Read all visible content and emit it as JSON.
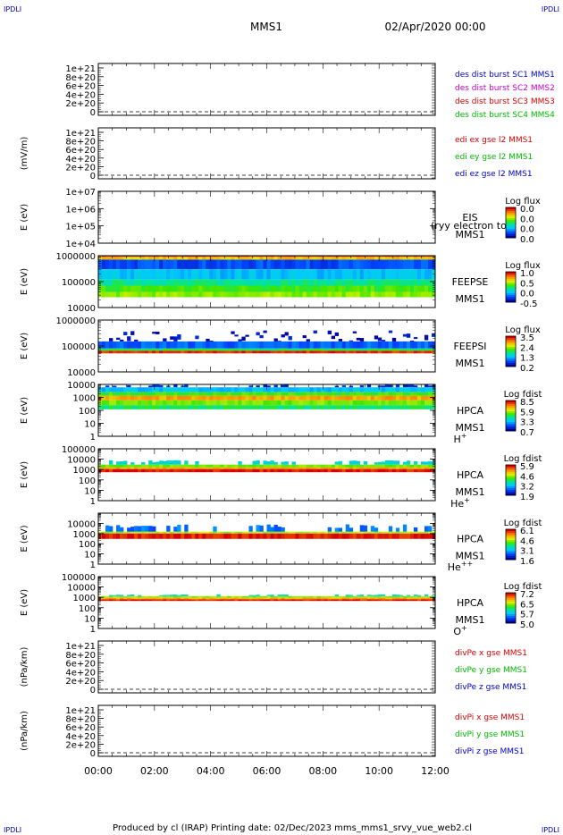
{
  "header": {
    "logo_left_top": "IPDLI",
    "logo_right_top": "IPDLI",
    "logo_left_bottom": "IPDLI",
    "logo_right_bottom": "IPDLI",
    "spacecraft": "MMS1",
    "datetime": "02/Apr/2020 00:00"
  },
  "footer": {
    "text": "Produced by cl (IRAP)   Printing date: 02/Dec/2023   mms_mms1_srvy_vue_web2.cl"
  },
  "time_axis": {
    "ticks": [
      "00:00",
      "02:00",
      "04:00",
      "06:00",
      "08:00",
      "10:00",
      "12:00"
    ]
  },
  "colors": {
    "blue": "#0000cc",
    "magenta": "#cc00cc",
    "red": "#dd0000",
    "green": "#00bb00"
  },
  "chart_data": [
    {
      "type": "line",
      "id": "des-dist",
      "ylabel": "",
      "ylim": [
        0,
        1e+21
      ],
      "yticks": [
        "1e+21",
        "8e+20",
        "6e+20",
        "4e+20",
        "2e+20",
        "0"
      ],
      "legend": [
        {
          "name": "des dist burst SC1 MMS1",
          "color": "#0000cc"
        },
        {
          "name": "des dist burst SC2 MMS2",
          "color": "#cc00cc"
        },
        {
          "name": "des dist burst SC3 MMS3",
          "color": "#dd0000"
        },
        {
          "name": "des dist burst SC4 MMS4",
          "color": "#00bb00"
        }
      ],
      "series": []
    },
    {
      "type": "line",
      "id": "edi-e",
      "ylabel": "(mV/m)",
      "ylim": [
        0,
        1e+21
      ],
      "yticks": [
        "1e+21",
        "8e+20",
        "6e+20",
        "4e+20",
        "2e+20",
        "0"
      ],
      "legend": [
        {
          "name": "edi ex gse l2 MMS1",
          "color": "#dd0000"
        },
        {
          "name": "edi ey gse l2 MMS1",
          "color": "#00bb00"
        },
        {
          "name": "edi ez gse l2 MMS1",
          "color": "#0000cc"
        }
      ],
      "series": []
    },
    {
      "type": "heatmap",
      "id": "eis",
      "ylabel": "E (eV)",
      "yscale": "log",
      "ylim": [
        10000.0,
        10000000.0
      ],
      "yticks": [
        "1e+07",
        "1e+06",
        "1e+05",
        "1e+04"
      ],
      "labels": [
        "EIS",
        "MMS1"
      ],
      "overlay": "(ryy electron to",
      "colorbar": {
        "title": "Log flux",
        "ticks": [
          "0.0",
          "0.0",
          "0.0",
          "0.0"
        ]
      },
      "bands": []
    },
    {
      "type": "heatmap",
      "id": "feepse",
      "ylabel": "E (eV)",
      "yscale": "log",
      "ylim": [
        10000,
        1000000
      ],
      "yticks": [
        "1000000",
        "100000",
        "10000"
      ],
      "labels": [
        "FEEPSE",
        "MMS1"
      ],
      "colorbar": {
        "title": "Log flux",
        "ticks": [
          "1.0",
          "0.5",
          "0.0",
          "-0.5"
        ]
      },
      "bands": [
        {
          "from": 900000.0,
          "to": 1000000.0,
          "level": 0.95
        },
        {
          "from": 700000.0,
          "to": 900000.0,
          "level": 0.75
        },
        {
          "from": 300000.0,
          "to": 700000.0,
          "level": 0.15
        },
        {
          "from": 120000.0,
          "to": 300000.0,
          "level": 0.3
        },
        {
          "from": 70000.0,
          "to": 120000.0,
          "level": 0.45
        },
        {
          "from": 40000.0,
          "to": 70000.0,
          "level": 0.55
        },
        {
          "from": 25000.0,
          "to": 40000.0,
          "level": 0.62
        }
      ]
    },
    {
      "type": "heatmap",
      "id": "feepsi",
      "ylabel": "E (eV)",
      "yscale": "log",
      "ylim": [
        10000,
        1000000
      ],
      "yticks": [
        "1000000",
        "100000",
        "10000"
      ],
      "labels": [
        "FEEPSI",
        "MMS1"
      ],
      "colorbar": {
        "title": "Log flux",
        "ticks": [
          "3.5",
          "2.4",
          "1.3",
          "0.2"
        ]
      },
      "bands": [
        {
          "from": 150000.0,
          "to": 400000.0,
          "level": 0.05,
          "sparse": true
        },
        {
          "from": 80000.0,
          "to": 150000.0,
          "level": 0.18
        },
        {
          "from": 65000.0,
          "to": 80000.0,
          "level": 0.5
        },
        {
          "from": 52000.0,
          "to": 65000.0,
          "level": 0.95
        }
      ]
    },
    {
      "type": "heatmap",
      "id": "hpca-h",
      "ylabel": "E (eV)",
      "yscale": "log",
      "ylim": [
        1,
        10000
      ],
      "yticks": [
        "10000",
        "1000",
        "100",
        "10",
        "1"
      ],
      "labels": [
        "HPCA",
        "MMS1",
        "H+"
      ],
      "colorbar": {
        "title": "Log fdist",
        "ticks": [
          "8.5",
          "5.9",
          "3.3",
          "0.7"
        ]
      },
      "bands": [
        {
          "from": 6000,
          "to": 15000,
          "level": 0.1,
          "patchy": true
        },
        {
          "from": 2500,
          "to": 6000,
          "level": 0.3
        },
        {
          "from": 1300,
          "to": 2500,
          "level": 0.55
        },
        {
          "from": 600,
          "to": 1300,
          "level": 0.8
        },
        {
          "from": 250,
          "to": 600,
          "level": 0.6
        },
        {
          "from": 120,
          "to": 250,
          "level": 0.48
        }
      ]
    },
    {
      "type": "heatmap",
      "id": "hpca-he",
      "ylabel": "E (eV)",
      "yscale": "log",
      "ylim": [
        1,
        100000
      ],
      "yticks": [
        "100000",
        "10000",
        "1000",
        "100",
        "10",
        "1"
      ],
      "labels": [
        "HPCA",
        "MMS1",
        "He+"
      ],
      "colorbar": {
        "title": "Log fdist",
        "ticks": [
          "5.9",
          "4.6",
          "3.2",
          "1.9"
        ]
      },
      "bands": [
        {
          "from": 3000,
          "to": 8000,
          "level": 0.35,
          "patchy": true
        },
        {
          "from": 1600,
          "to": 3000,
          "level": 0.6
        },
        {
          "from": 1100,
          "to": 1600,
          "level": 0.8
        },
        {
          "from": 550,
          "to": 1100,
          "level": 0.97
        }
      ]
    },
    {
      "type": "heatmap",
      "id": "hpca-hepp",
      "ylabel": "E (eV)",
      "yscale": "log",
      "ylim": [
        1,
        100000
      ],
      "yticks": [
        "10000",
        "1000",
        "100",
        "10",
        "1"
      ],
      "labels": [
        "HPCA",
        "MMS1",
        "He++"
      ],
      "colorbar": {
        "title": "Log fdist",
        "ticks": [
          "6.1",
          "4.6",
          "3.1",
          "1.6"
        ]
      },
      "bands": [
        {
          "from": 1500,
          "to": 8000,
          "level": 0.2,
          "patchy": true
        },
        {
          "from": 1000,
          "to": 1500,
          "level": 0.65
        },
        {
          "from": 300,
          "to": 1000,
          "level": 0.97
        }
      ]
    },
    {
      "type": "heatmap",
      "id": "hpca-o",
      "ylabel": "E (eV)",
      "yscale": "log",
      "ylim": [
        1,
        100000
      ],
      "yticks": [
        "100000",
        "10000",
        "1000",
        "100",
        "10",
        "1"
      ],
      "labels": [
        "HPCA",
        "MMS1",
        "O+"
      ],
      "colorbar": {
        "title": "Log fdist",
        "ticks": [
          "7.2",
          "6.5",
          "5.7",
          "5.0"
        ]
      },
      "bands": [
        {
          "from": 1300,
          "to": 2000,
          "level": 0.35,
          "patchy": true
        },
        {
          "from": 900,
          "to": 1300,
          "level": 0.62
        },
        {
          "from": 650,
          "to": 900,
          "level": 0.8
        },
        {
          "from": 450,
          "to": 650,
          "level": 0.97
        }
      ]
    },
    {
      "type": "line",
      "id": "divpe",
      "ylabel": "(nPa/km)",
      "ylim": [
        0,
        1e+21
      ],
      "yticks": [
        "1e+21",
        "8e+20",
        "6e+20",
        "4e+20",
        "2e+20",
        "0"
      ],
      "legend": [
        {
          "name": "divPe x gse MMS1",
          "color": "#dd0000"
        },
        {
          "name": "divPe y gse MMS1",
          "color": "#00bb00"
        },
        {
          "name": "divPe z gse MMS1",
          "color": "#0000cc"
        }
      ],
      "series": []
    },
    {
      "type": "line",
      "id": "divpi",
      "ylabel": "(nPa/km)",
      "ylim": [
        0,
        1e+21
      ],
      "yticks": [
        "1e+21",
        "8e+20",
        "6e+20",
        "4e+20",
        "2e+20",
        "0"
      ],
      "legend": [
        {
          "name": "divPi x gse MMS1",
          "color": "#dd0000"
        },
        {
          "name": "divPi y gse MMS1",
          "color": "#00bb00"
        },
        {
          "name": "divPi z gse MMS1",
          "color": "#0000cc"
        }
      ],
      "series": []
    }
  ]
}
